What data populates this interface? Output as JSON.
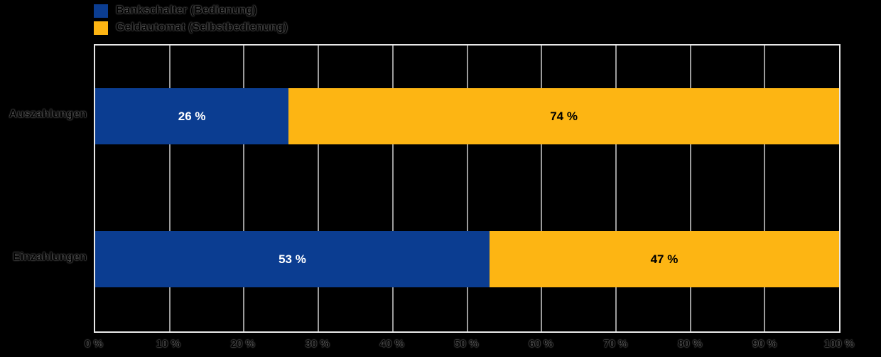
{
  "chart_data": {
    "type": "bar",
    "orientation": "horizontal",
    "stacked": true,
    "title": "",
    "xlabel": "",
    "ylabel": "",
    "categories": [
      "Auszahlungen",
      "Einzahlungen"
    ],
    "series": [
      {
        "name": "Bankschalter (Bedienung)",
        "color": "#0b3d91",
        "values": [
          26,
          53
        ],
        "data_labels": [
          "26 %",
          "53 %"
        ],
        "data_label_color": "#ffffff"
      },
      {
        "name": "Geldautomat (Selbstbedienung)",
        "color": "#fdb513",
        "values": [
          74,
          47
        ],
        "data_labels": [
          "74 %",
          "47 %"
        ],
        "data_label_color": "#000000"
      }
    ],
    "xlim": [
      0,
      100
    ],
    "x_tick_labels": [
      "0 %",
      "10 %",
      "20 %",
      "30 %",
      "40 %",
      "50 %",
      "60 %",
      "70 %",
      "80 %",
      "90 %",
      "100 %"
    ],
    "grid": true,
    "gridline_color": "#9c9c9c",
    "plot_border_color": "#e8e8e8",
    "legend_position": "top-left",
    "background": "transparent (rendered black)"
  },
  "legend": {
    "items": [
      {
        "label": "Bankschalter (Bedienung)",
        "color": "#0b3d91"
      },
      {
        "label": "Geldautomat (Selbstbedienung)",
        "color": "#fdb513"
      }
    ]
  }
}
